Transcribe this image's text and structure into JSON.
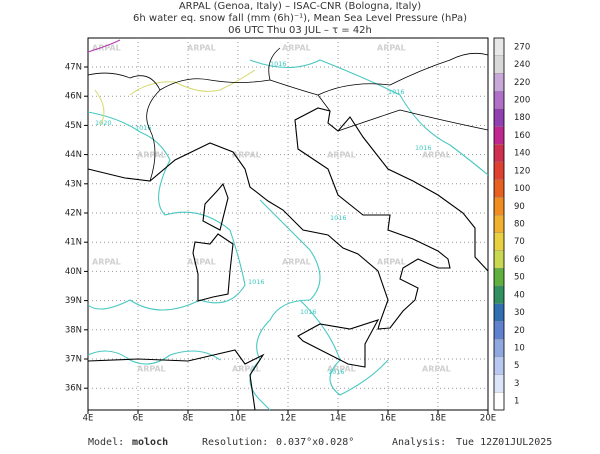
{
  "header": {
    "lines": [
      "ARPAL (Genoa, Italy)  –  ISAC-CNR (Bologna, Italy)",
      "6h water eq. snow fall (mm (6h)⁻¹), Mean Sea Level Pressure (hPa)",
      "06 UTC Thu 03 JUL  –  τ = 42h"
    ]
  },
  "map": {
    "lon_labels": [
      "4E",
      "6E",
      "8E",
      "10E",
      "12E",
      "14E",
      "16E",
      "18E",
      "20E"
    ],
    "lat_labels": [
      "47N",
      "46N",
      "45N",
      "44N",
      "43N",
      "42N",
      "41N",
      "40N",
      "39N",
      "38N",
      "37N",
      "36N"
    ],
    "isobar_labels": [
      "1020",
      "1016",
      "1016",
      "1016",
      "1016",
      "1016",
      "1016",
      "1016",
      "1016"
    ],
    "watermark": "ARPAL"
  },
  "colorbar": {
    "labels": [
      "270",
      "240",
      "220",
      "200",
      "180",
      "160",
      "140",
      "120",
      "100",
      "90",
      "80",
      "70",
      "60",
      "50",
      "40",
      "30",
      "20",
      "10",
      "5",
      "3",
      "1"
    ]
  },
  "footer": {
    "model_label": "Model:",
    "model": "moloch",
    "resolution_label": "Resolution:",
    "resolution": "0.037°x0.028°",
    "analysis_label": "Analysis:",
    "analysis": "Tue 12Z01JUL2025"
  }
}
